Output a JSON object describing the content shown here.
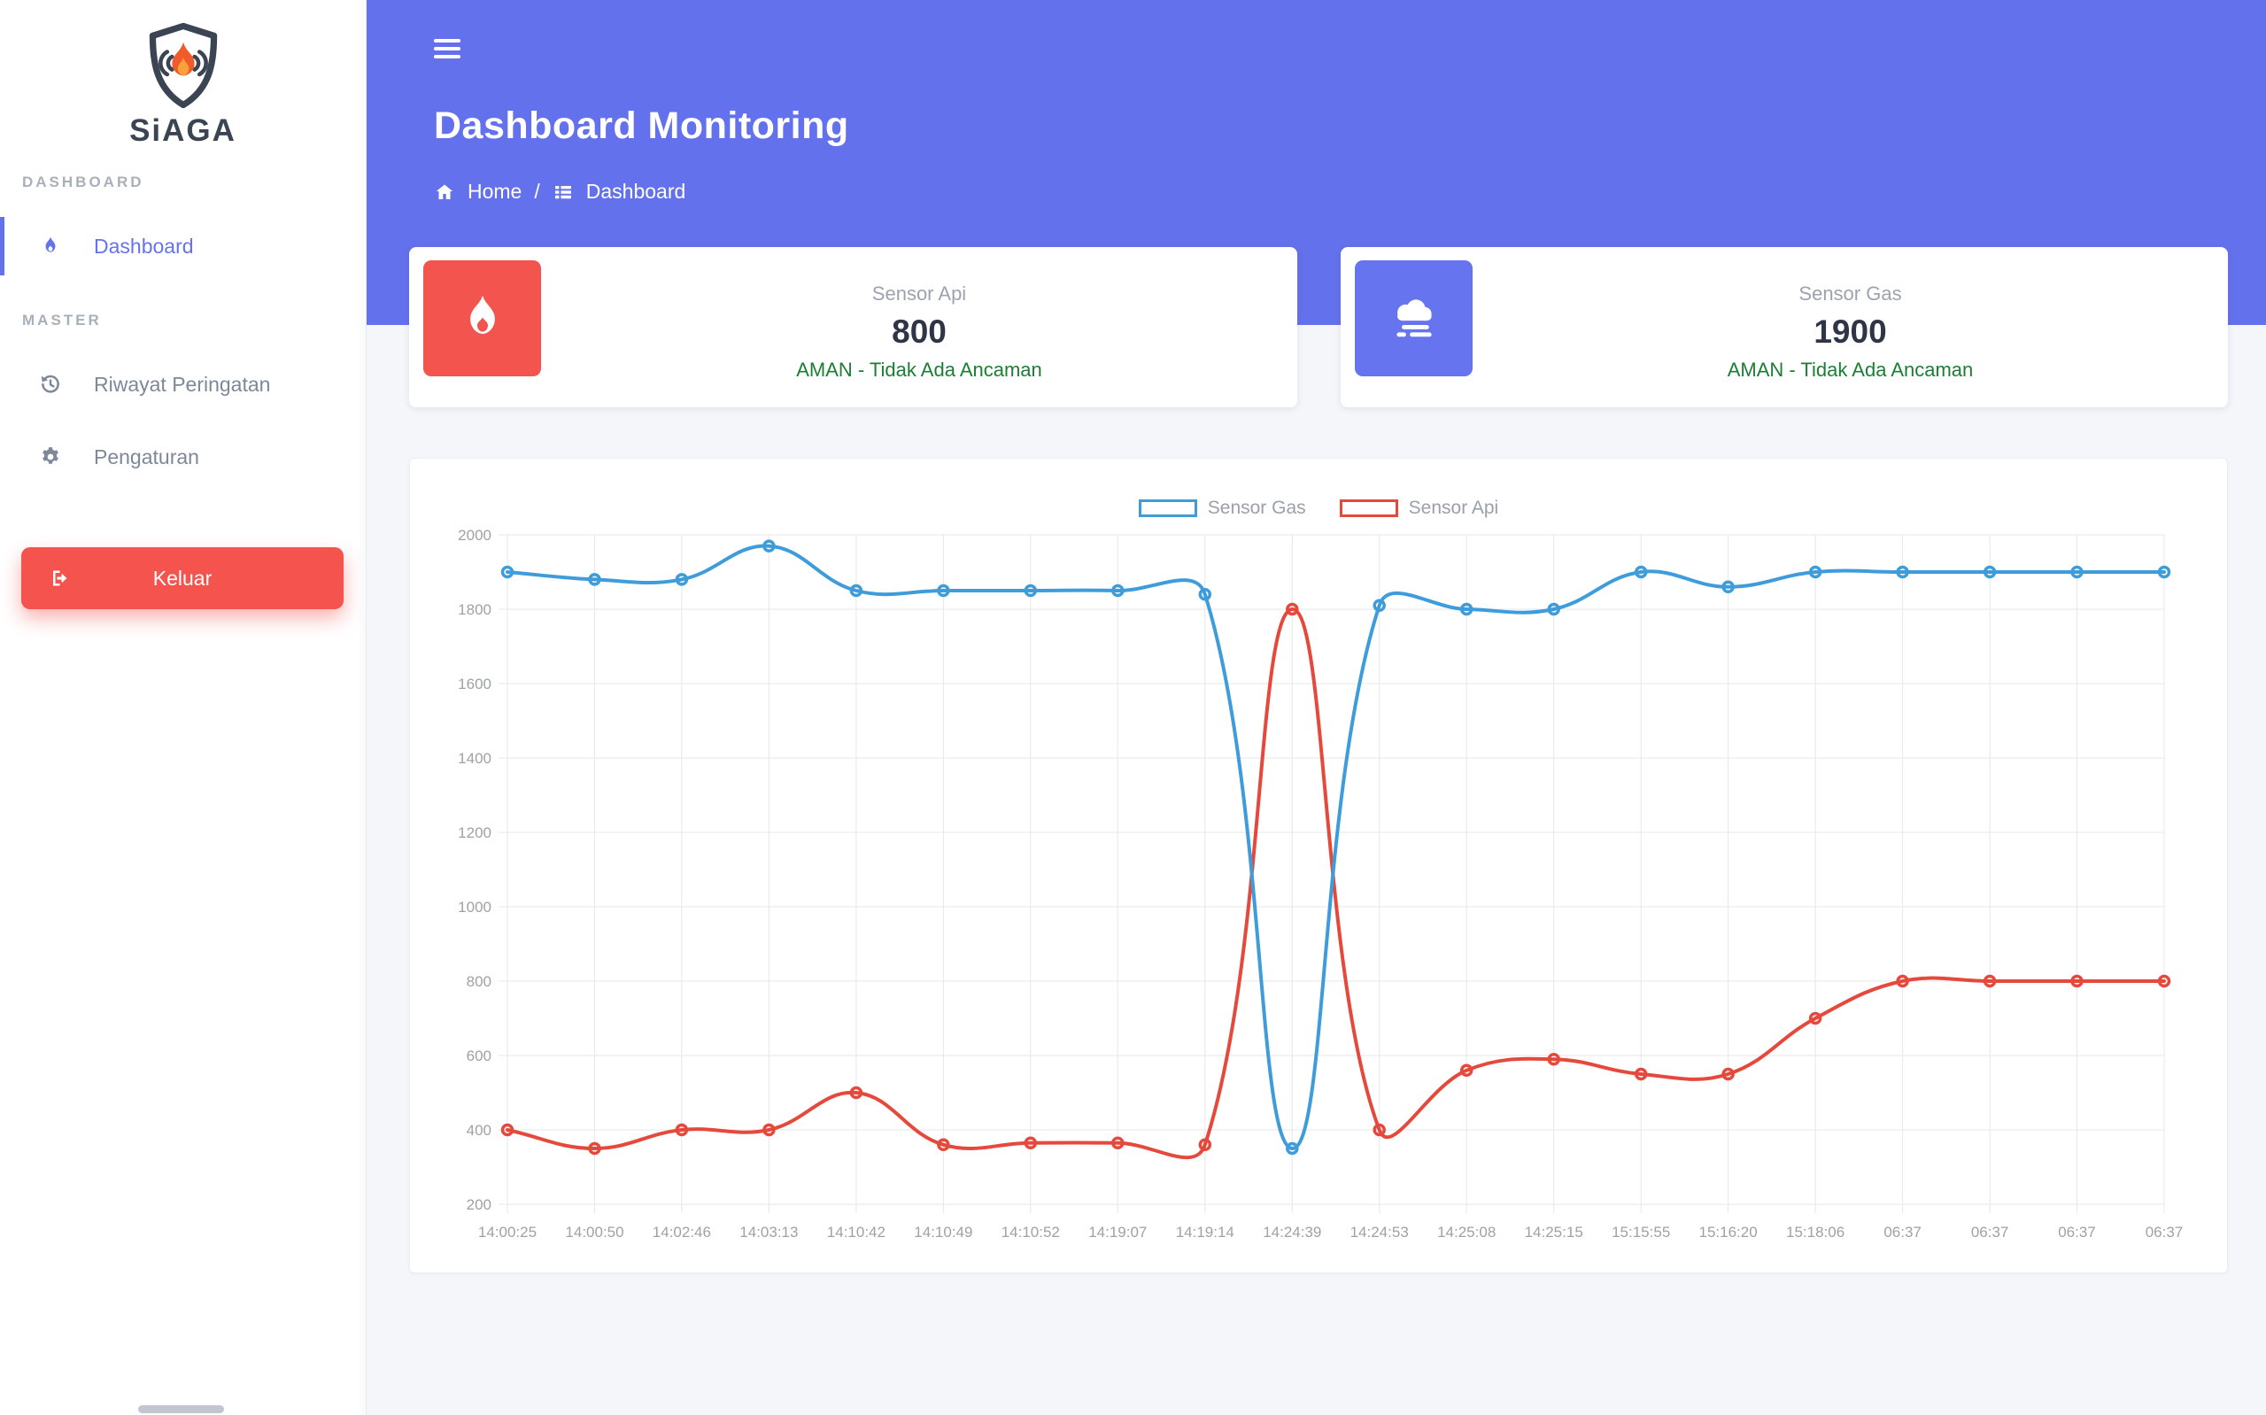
{
  "sidebar": {
    "brand": "SiAGA",
    "sections": [
      {
        "label": "DASHBOARD",
        "items": [
          {
            "label": "Dashboard",
            "icon": "flame-icon",
            "active": true
          }
        ]
      },
      {
        "label": "MASTER",
        "items": [
          {
            "label": "Riwayat Peringatan",
            "icon": "history-icon",
            "active": false
          },
          {
            "label": "Pengaturan",
            "icon": "gear-icon",
            "active": false
          }
        ]
      }
    ],
    "logout_label": "Keluar"
  },
  "header": {
    "title": "Dashboard Monitoring",
    "breadcrumb": {
      "home": "Home",
      "separator": "/",
      "current": "Dashboard"
    }
  },
  "cards": [
    {
      "title": "Sensor Api",
      "value": "800",
      "status": "AMAN - Tidak Ada Ancaman",
      "icon": "flame-icon",
      "tile_color": "#F3544E"
    },
    {
      "title": "Sensor Gas",
      "value": "1900",
      "status": "AMAN - Tidak Ada Ancaman",
      "icon": "smog-icon",
      "tile_color": "#6674F0"
    }
  ],
  "colors": {
    "header": "#6471EC",
    "accent_indigo": "#6473EE",
    "danger_red": "#F4534E",
    "status_green": "#1B7E34",
    "chart_blue": "#3E9CDB",
    "chart_red": "#E5493C"
  },
  "chart_data": {
    "type": "line",
    "x": [
      "14:00:25",
      "14:00:50",
      "14:02:46",
      "14:03:13",
      "14:10:42",
      "14:10:49",
      "14:10:52",
      "14:19:07",
      "14:19:14",
      "14:24:39",
      "14:24:53",
      "14:25:08",
      "14:25:15",
      "15:15:55",
      "15:16:20",
      "15:18:06",
      "06:37",
      "06:37",
      "06:37",
      "06:37"
    ],
    "series": [
      {
        "name": "Sensor Gas",
        "color": "#3E9CDB",
        "values": [
          1900,
          1880,
          1880,
          1970,
          1850,
          1850,
          1850,
          1850,
          1840,
          350,
          1810,
          1800,
          1800,
          1900,
          1860,
          1900,
          1900,
          1900,
          1900,
          1900
        ]
      },
      {
        "name": "Sensor Api",
        "color": "#E5493C",
        "values": [
          400,
          350,
          400,
          400,
          500,
          360,
          365,
          365,
          360,
          1800,
          400,
          560,
          590,
          550,
          550,
          700,
          800,
          800,
          800,
          800
        ]
      }
    ],
    "ylim": [
      200,
      2000
    ],
    "ytick_step": 200,
    "grid": true,
    "legend_position": "top",
    "title": "",
    "xlabel": "",
    "ylabel": ""
  }
}
